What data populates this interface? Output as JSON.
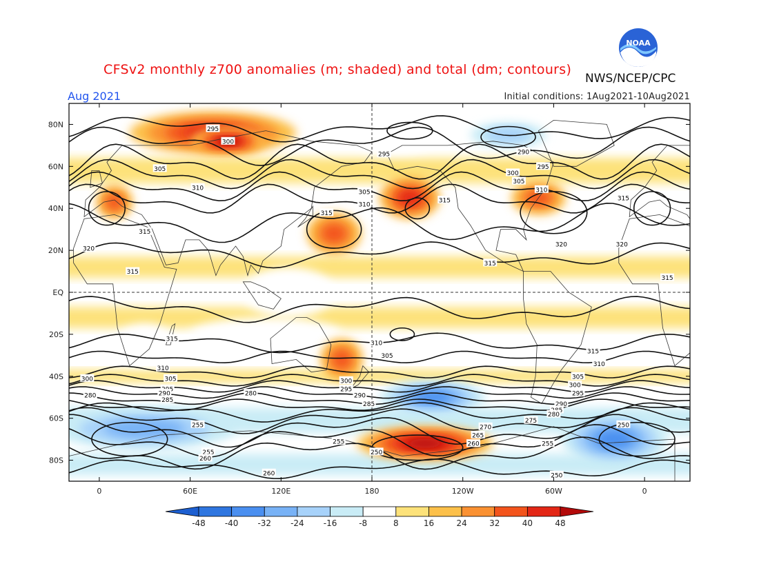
{
  "header": {
    "title": "CFSv2 monthly z700 anomalies (m; shaded) and total (dm; contours)",
    "agency": "NWS/NCEP/CPC",
    "month": "Aug 2021",
    "initial_conditions": "Initial conditions: 1Aug2021-10Aug2021",
    "logo_text": "NOAA"
  },
  "map": {
    "lat_labels": [
      "80N",
      "60N",
      "40N",
      "20N",
      "EQ",
      "20S",
      "40S",
      "60S",
      "80S"
    ],
    "lat_values": [
      80,
      60,
      40,
      20,
      0,
      -20,
      -40,
      -60,
      -80
    ],
    "lon_labels": [
      "0",
      "60E",
      "120E",
      "180",
      "120W",
      "60W",
      "0"
    ],
    "lon_values": [
      0,
      60,
      120,
      180,
      240,
      300,
      360
    ],
    "lon_range": [
      -20,
      390
    ],
    "lat_range": [
      -90,
      90
    ]
  },
  "colorbar": {
    "ticks": [
      "-48",
      "-40",
      "-32",
      "-24",
      "-16",
      "-8",
      "8",
      "16",
      "24",
      "32",
      "40",
      "48"
    ],
    "colors": [
      "#1d5fd1",
      "#2f76e0",
      "#4a8ff0",
      "#78b2f6",
      "#a7d2fa",
      "#c9ecf6",
      "#ffffff",
      "#fde27a",
      "#fcc04a",
      "#fa9132",
      "#f3541c",
      "#e32716",
      "#b30a0a"
    ]
  },
  "chart_data": {
    "type": "heatmap",
    "anomaly_units": "m",
    "contour_units": "dm",
    "anomaly_regions": [
      {
        "lon": 75,
        "lat": 76,
        "rx": 55,
        "ry": 10,
        "value": 40
      },
      {
        "lon": 85,
        "lat": 72,
        "rx": 25,
        "ry": 6,
        "value": 48
      },
      {
        "lon": 155,
        "lat": 28,
        "rx": 18,
        "ry": 10,
        "value": 32
      },
      {
        "lon": 205,
        "lat": 45,
        "rx": 20,
        "ry": 10,
        "value": 40
      },
      {
        "lon": 290,
        "lat": 45,
        "rx": 18,
        "ry": 8,
        "value": 32
      },
      {
        "lon": 10,
        "lat": 43,
        "rx": 12,
        "ry": 8,
        "value": 32
      },
      {
        "lon": 160,
        "lat": -32,
        "rx": 14,
        "ry": 10,
        "value": 32
      },
      {
        "lon": 215,
        "lat": -72,
        "rx": 45,
        "ry": 8,
        "value": 48
      },
      {
        "lon": 220,
        "lat": -50,
        "rx": 35,
        "ry": 8,
        "value": -40
      },
      {
        "lon": 340,
        "lat": -70,
        "rx": 35,
        "ry": 12,
        "value": -40
      },
      {
        "lon": 30,
        "lat": -65,
        "rx": 60,
        "ry": 10,
        "value": -32
      },
      {
        "lon": 270,
        "lat": 75,
        "rx": 25,
        "ry": 6,
        "value": -24
      }
    ],
    "contour_values": [
      "250",
      "255",
      "260",
      "265",
      "270",
      "275",
      "280",
      "285",
      "290",
      "295",
      "300",
      "305",
      "310",
      "315",
      "320"
    ],
    "contour_labels": [
      {
        "text": "295",
        "lon": 75,
        "lat": 78
      },
      {
        "text": "300",
        "lon": 85,
        "lat": 72
      },
      {
        "text": "305",
        "lon": 40,
        "lat": 59
      },
      {
        "text": "310",
        "lon": 65,
        "lat": 50
      },
      {
        "text": "295",
        "lon": 188,
        "lat": 66
      },
      {
        "text": "305",
        "lon": 175,
        "lat": 48
      },
      {
        "text": "310",
        "lon": 175,
        "lat": 42
      },
      {
        "text": "315",
        "lon": 150,
        "lat": 38
      },
      {
        "text": "290",
        "lon": 280,
        "lat": 67
      },
      {
        "text": "295",
        "lon": 293,
        "lat": 60
      },
      {
        "text": "300",
        "lon": 273,
        "lat": 57
      },
      {
        "text": "305",
        "lon": 277,
        "lat": 53
      },
      {
        "text": "310",
        "lon": 292,
        "lat": 49
      },
      {
        "text": "315",
        "lon": 228,
        "lat": 44
      },
      {
        "text": "315",
        "lon": 346,
        "lat": 45
      },
      {
        "text": "320",
        "lon": -7,
        "lat": 21
      },
      {
        "text": "315",
        "lon": 30,
        "lat": 29
      },
      {
        "text": "315",
        "lon": 22,
        "lat": 10
      },
      {
        "text": "320",
        "lon": 305,
        "lat": 23
      },
      {
        "text": "320",
        "lon": 345,
        "lat": 23
      },
      {
        "text": "315",
        "lon": 258,
        "lat": 14
      },
      {
        "text": "315",
        "lon": 375,
        "lat": 7
      },
      {
        "text": "315",
        "lon": 48,
        "lat": -22
      },
      {
        "text": "310",
        "lon": 183,
        "lat": -24
      },
      {
        "text": "305",
        "lon": 190,
        "lat": -30
      },
      {
        "text": "310",
        "lon": 330,
        "lat": -34
      },
      {
        "text": "315",
        "lon": 326,
        "lat": -28
      },
      {
        "text": "310",
        "lon": 42,
        "lat": -36
      },
      {
        "text": "305",
        "lon": 47,
        "lat": -41
      },
      {
        "text": "300",
        "lon": -8,
        "lat": -41
      },
      {
        "text": "300",
        "lon": 163,
        "lat": -42
      },
      {
        "text": "295",
        "lon": 163,
        "lat": -46
      },
      {
        "text": "295",
        "lon": 45,
        "lat": -46
      },
      {
        "text": "290",
        "lon": 43,
        "lat": -48
      },
      {
        "text": "285",
        "lon": 45,
        "lat": -51
      },
      {
        "text": "280",
        "lon": -6,
        "lat": -49
      },
      {
        "text": "280",
        "lon": 100,
        "lat": -48
      },
      {
        "text": "290",
        "lon": 172,
        "lat": -49
      },
      {
        "text": "285",
        "lon": 178,
        "lat": -53
      },
      {
        "text": "305",
        "lon": 316,
        "lat": -40
      },
      {
        "text": "300",
        "lon": 314,
        "lat": -44
      },
      {
        "text": "295",
        "lon": 316,
        "lat": -48
      },
      {
        "text": "290",
        "lon": 305,
        "lat": -53
      },
      {
        "text": "285",
        "lon": 302,
        "lat": -56
      },
      {
        "text": "280",
        "lon": 300,
        "lat": -58
      },
      {
        "text": "275",
        "lon": 285,
        "lat": -61
      },
      {
        "text": "270",
        "lon": 255,
        "lat": -64
      },
      {
        "text": "265",
        "lon": 250,
        "lat": -68
      },
      {
        "text": "260",
        "lon": 247,
        "lat": -72
      },
      {
        "text": "255",
        "lon": 158,
        "lat": -71
      },
      {
        "text": "250",
        "lon": 183,
        "lat": -76
      },
      {
        "text": "255",
        "lon": 296,
        "lat": -72
      },
      {
        "text": "255",
        "lon": 65,
        "lat": -63
      },
      {
        "text": "250",
        "lon": 346,
        "lat": -63
      },
      {
        "text": "255",
        "lon": 72,
        "lat": -76
      },
      {
        "text": "260",
        "lon": 70,
        "lat": -79
      },
      {
        "text": "260",
        "lon": 112,
        "lat": -86
      },
      {
        "text": "250",
        "lon": 302,
        "lat": -87
      }
    ]
  }
}
